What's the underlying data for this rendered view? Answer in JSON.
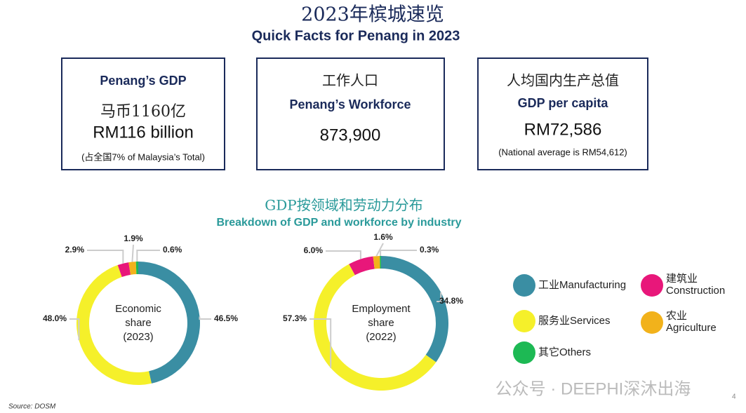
{
  "header": {
    "title": "2023年槟城速览",
    "subtitle": "Quick Facts for Penang in 2023"
  },
  "facts": [
    {
      "lines": [
        "Penang’s GDP",
        "马币1160亿",
        "RM116 billion",
        "(占全国7% of Malaysia’s Total)"
      ]
    },
    {
      "lines": [
        "工作人口",
        "Penang’s Workforce",
        "873,900"
      ]
    },
    {
      "lines": [
        "人均国内生产总值",
        "GDP per capita",
        "RM72,586",
        "(National average is RM54,612)"
      ]
    }
  ],
  "section": {
    "title": "GDP按领域和劳动力分布",
    "subtitle": "Breakdown of GDP and workforce by industry"
  },
  "chart_data": [
    {
      "type": "pie",
      "donut": true,
      "center_label": [
        "Economic",
        "share",
        "(2023)"
      ],
      "categories": [
        "工业Manufacturing",
        "服务业Services",
        "建筑业 Construction",
        "农业 Agriculture",
        "其它Others"
      ],
      "values": [
        46.5,
        48.0,
        2.9,
        1.9,
        0.6
      ],
      "value_labels": [
        "46.5%",
        "48.0%",
        "2.9%",
        "1.9%",
        "0.6%"
      ],
      "colors": [
        "#3a8ea3",
        "#f5f02a",
        "#e8177a",
        "#f2b21b",
        "#1db954"
      ]
    },
    {
      "type": "pie",
      "donut": true,
      "center_label": [
        "Employment",
        "share",
        "(2022)"
      ],
      "values": [
        34.8,
        57.3,
        6.0,
        1.6,
        0.3
      ],
      "value_labels": [
        "34.8%",
        "57.3%",
        "6.0%",
        "1.6%",
        "0.3%"
      ],
      "colors": [
        "#3a8ea3",
        "#f5f02a",
        "#e8177a",
        "#f2b21b",
        "#1db954"
      ]
    }
  ],
  "source": "Source: DOSM",
  "watermark": "公众号 · DEEPHI深沐出海",
  "page_number": "4"
}
